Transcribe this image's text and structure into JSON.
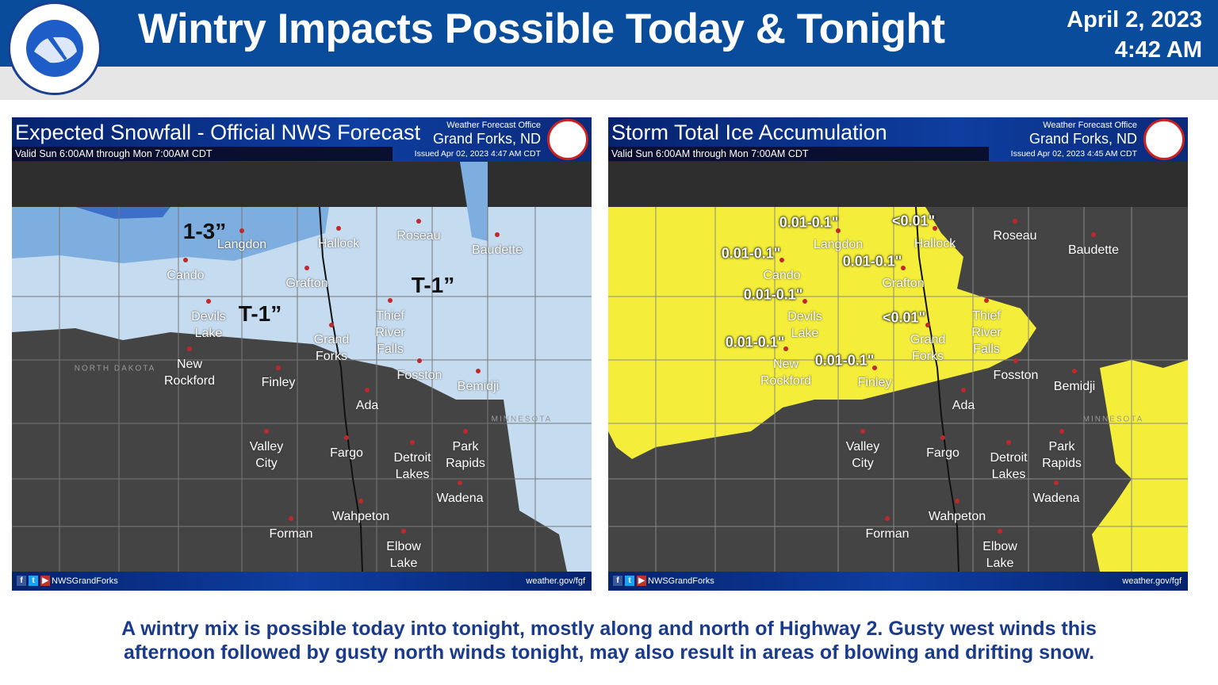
{
  "header": {
    "title": "Wintry Impacts Possible Today & Tonight",
    "date": "April 2, 2023",
    "time": "4:42 AM",
    "logo_text": "NATIONAL WEATHER SERVICE"
  },
  "panels": [
    {
      "title": "Expected Snowfall - Official NWS Forecast",
      "valid": "Valid Sun 6:00AM through Mon 7:00AM CDT",
      "office_label": "Weather Forecast Office",
      "office": "Grand Forks, ND",
      "issued": "Issued Apr 02, 2023 4:47 AM CDT",
      "social": "NWSGrandForks",
      "url": "weather.gov/fgf",
      "state_labels": [
        "NORTH DAKOTA",
        "MINNESOTA"
      ],
      "amounts": [
        "1-3”",
        "T-1”",
        "T-1”"
      ],
      "colors": {
        "light": "#c5dbef",
        "mid": "#7eaee0",
        "dark": "#3d6fc8"
      }
    },
    {
      "title": "Storm Total Ice Accumulation",
      "valid": "Valid Sun 6:00AM through Mon 7:00AM CDT",
      "office_label": "Weather Forecast Office",
      "office": "Grand Forks, ND",
      "issued": "Issued Apr 02, 2023 4:45 AM CDT",
      "social": "NWSGrandForks",
      "url": "weather.gov/fgf",
      "state_labels": [
        "MINNESOTA"
      ],
      "amounts": [
        "0.01-0.1\"",
        "<0.01\"",
        "0.01-0.1\"",
        "0.01-0.1\"",
        "0.01-0.1\"",
        "<0.01\"",
        "0.01-0.1\"",
        "0.01-0.1\""
      ],
      "colors": {
        "ice": "#f4ee3a"
      }
    }
  ],
  "cities": [
    "Langdon",
    "Hallock",
    "Roseau",
    "Baudette",
    "Cando",
    "Grafton",
    "Devils\nLake",
    "Thief\nRiver\nFalls",
    "Grand\nForks",
    "New\nRockford",
    "Finley",
    "Fosston",
    "Bemidji",
    "Ada",
    "Valley\nCity",
    "Fargo",
    "Detroit\nLakes",
    "Park\nRapids",
    "Wadena",
    "Wahpeton",
    "Forman",
    "Elbow\nLake"
  ],
  "caption": {
    "line1": "A wintry mix is possible today into tonight, mostly along and north of Highway 2.  Gusty west winds this",
    "line2": "afternoon  followed by gusty north winds tonight, may also result in areas of blowing and drifting snow."
  }
}
